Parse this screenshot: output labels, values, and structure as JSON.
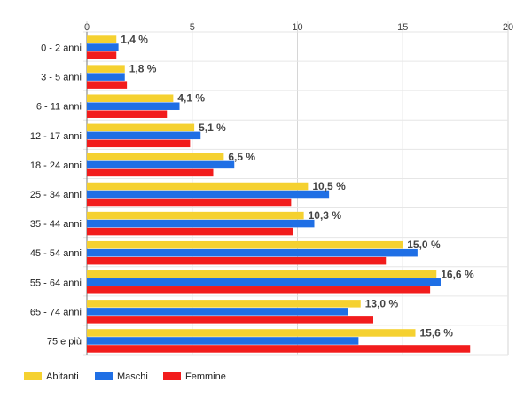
{
  "chart_data": {
    "type": "bar",
    "orientation": "horizontal",
    "categories": [
      "0 - 2 anni",
      "3 - 5 anni",
      "6 - 11 anni",
      "12 - 17 anni",
      "18 - 24 anni",
      "25 - 34 anni",
      "35 - 44 anni",
      "45 - 54 anni",
      "55 - 64 anni",
      "65 - 74 anni",
      "75 e più"
    ],
    "series": [
      {
        "name": "Abitanti",
        "color": "#f5d130",
        "values": [
          1.4,
          1.8,
          4.1,
          5.1,
          6.5,
          10.5,
          10.3,
          15.0,
          16.6,
          13.0,
          15.6
        ]
      },
      {
        "name": "Maschi",
        "color": "#1f6fe5",
        "values": [
          1.5,
          1.8,
          4.4,
          5.4,
          7.0,
          11.5,
          10.8,
          15.7,
          16.8,
          12.4,
          12.9
        ]
      },
      {
        "name": "Femmine",
        "color": "#f21c1c",
        "values": [
          1.4,
          1.9,
          3.8,
          4.9,
          6.0,
          9.7,
          9.8,
          14.2,
          16.3,
          13.6,
          18.2
        ]
      }
    ],
    "data_labels": [
      "1,4 %",
      "1,8 %",
      "4,1 %",
      "5,1 %",
      "6,5 %",
      "10,5 %",
      "10,3 %",
      "15,0 %",
      "16,6 %",
      "13,0 %",
      "15,6 %"
    ],
    "x_ticks": [
      "0",
      "5",
      "10",
      "15",
      "20"
    ],
    "xlim": [
      0,
      20
    ],
    "grid": true,
    "legend_position": "bottom-left",
    "title": "",
    "xlabel": "",
    "ylabel": ""
  }
}
